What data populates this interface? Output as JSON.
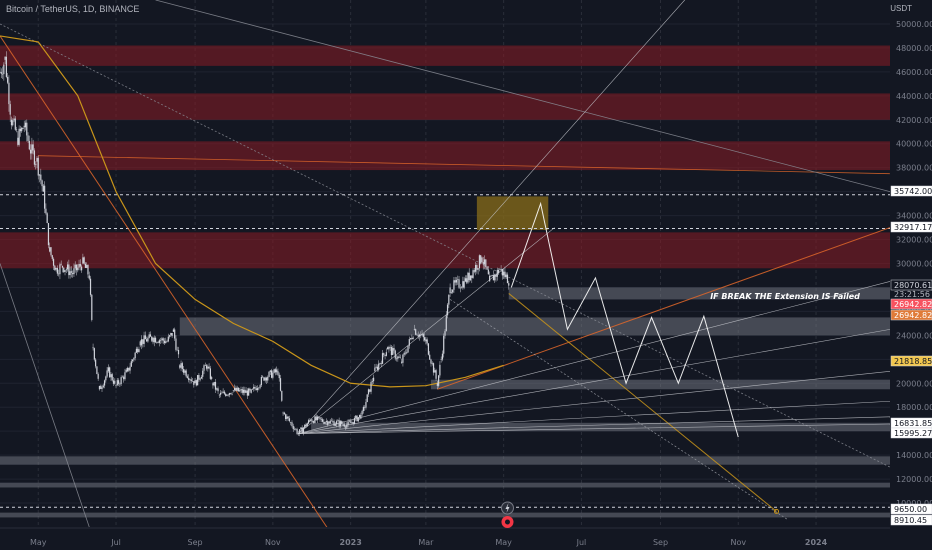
{
  "header": {
    "symbol_title": "Bitcoin / TetherUS, 1D, BINANCE",
    "currency": "USDT"
  },
  "colors": {
    "background": "#131722",
    "candles": "#d1d4dc",
    "resistance_zone": "#8b1c24",
    "support_zone": "#787b86",
    "highlight_zone": "#8a6d1a",
    "moving_average": "#c9951a",
    "orange_line": "#e0672a",
    "projection": "#ffffff"
  },
  "icons": [
    "lightning-icon",
    "tradingview-logo-icon"
  ],
  "chart_data": {
    "type": "line",
    "title": "",
    "xlabel": "",
    "ylabel": "",
    "xlim": [
      "2022-04-01",
      "2024-02-28"
    ],
    "ylim": [
      8000,
      52000
    ],
    "y_ticks": [
      10000,
      12000,
      14000,
      16000,
      18000,
      20000,
      22000,
      24000,
      26000,
      28000,
      30000,
      32000,
      34000,
      36000,
      38000,
      40000,
      42000,
      44000,
      46000,
      48000,
      50000
    ],
    "x_ticks": [
      {
        "label": "May",
        "date": "2022-05-01"
      },
      {
        "label": "Jul",
        "date": "2022-07-01"
      },
      {
        "label": "Sep",
        "date": "2022-09-01"
      },
      {
        "label": "Nov",
        "date": "2022-11-01"
      },
      {
        "label": "2023",
        "date": "2023-01-01"
      },
      {
        "label": "Mar",
        "date": "2023-03-01"
      },
      {
        "label": "May",
        "date": "2023-05-01"
      },
      {
        "label": "Jul",
        "date": "2023-07-01"
      },
      {
        "label": "Sep",
        "date": "2023-09-01"
      },
      {
        "label": "Nov",
        "date": "2023-11-01"
      },
      {
        "label": "2024",
        "date": "2024-01-01"
      }
    ],
    "grid": true,
    "series": [
      {
        "role": "price",
        "points": [
          [
            "2022-04-01",
            46000
          ],
          [
            "2022-04-05",
            47000
          ],
          [
            "2022-04-10",
            42000
          ],
          [
            "2022-04-15",
            40500
          ],
          [
            "2022-04-20",
            41500
          ],
          [
            "2022-04-25",
            39500
          ],
          [
            "2022-04-30",
            38500
          ],
          [
            "2022-05-05",
            36000
          ],
          [
            "2022-05-10",
            31000
          ],
          [
            "2022-05-15",
            29500
          ],
          [
            "2022-05-20",
            29800
          ],
          [
            "2022-05-28",
            29200
          ],
          [
            "2022-06-05",
            30000
          ],
          [
            "2022-06-10",
            29000
          ],
          [
            "2022-06-13",
            23000
          ],
          [
            "2022-06-18",
            19500
          ],
          [
            "2022-06-25",
            21000
          ],
          [
            "2022-07-01",
            19800
          ],
          [
            "2022-07-10",
            21000
          ],
          [
            "2022-07-20",
            23500
          ],
          [
            "2022-07-30",
            23800
          ],
          [
            "2022-08-10",
            23500
          ],
          [
            "2022-08-15",
            24300
          ],
          [
            "2022-08-20",
            21500
          ],
          [
            "2022-09-01",
            20000
          ],
          [
            "2022-09-10",
            21500
          ],
          [
            "2022-09-15",
            20000
          ],
          [
            "2022-09-20",
            19000
          ],
          [
            "2022-10-01",
            19400
          ],
          [
            "2022-10-15",
            19200
          ],
          [
            "2022-10-25",
            20500
          ],
          [
            "2022-11-05",
            21000
          ],
          [
            "2022-11-09",
            17500
          ],
          [
            "2022-11-15",
            16700
          ],
          [
            "2022-11-21",
            15800
          ],
          [
            "2022-12-01",
            17000
          ],
          [
            "2022-12-15",
            16800
          ],
          [
            "2022-12-30",
            16550
          ],
          [
            "2023-01-10",
            17400
          ],
          [
            "2023-01-20",
            21000
          ],
          [
            "2023-01-30",
            23000
          ],
          [
            "2023-02-10",
            21800
          ],
          [
            "2023-02-20",
            24500
          ],
          [
            "2023-03-01",
            23500
          ],
          [
            "2023-03-10",
            20000
          ],
          [
            "2023-03-13",
            22000
          ],
          [
            "2023-03-20",
            28000
          ],
          [
            "2023-04-01",
            28500
          ],
          [
            "2023-04-14",
            30500
          ],
          [
            "2023-04-20",
            28500
          ],
          [
            "2023-04-28",
            29500
          ],
          [
            "2023-05-06",
            28500
          ]
        ]
      },
      {
        "role": "projection",
        "points": [
          [
            "2023-05-07",
            28000
          ],
          [
            "2023-05-30",
            35000
          ],
          [
            "2023-06-20",
            24500
          ],
          [
            "2023-07-12",
            28800
          ],
          [
            "2023-08-05",
            20000
          ],
          [
            "2023-08-25",
            25500
          ],
          [
            "2023-09-15",
            20000
          ],
          [
            "2023-10-05",
            25600
          ],
          [
            "2023-11-01",
            15500
          ]
        ]
      }
    ],
    "price_tags": [
      {
        "value": 35742.0,
        "label": "35742.00"
      },
      {
        "value": 32917.17,
        "label": "32917.17"
      },
      {
        "value": 28070.61,
        "label": "28070.61"
      },
      {
        "value": 26942.82,
        "label": "26942.82"
      },
      {
        "value": 26942.82,
        "label": "26942.82"
      },
      {
        "value": 21818.85,
        "label": "21818.85"
      },
      {
        "value": 16831.85,
        "label": "16831.85"
      },
      {
        "value": 15995.27,
        "label": "15995.27"
      },
      {
        "value": 9650.0,
        "label": "9650.00"
      },
      {
        "value": 8910.45,
        "label": "8910.45"
      }
    ],
    "countdown": "23:21:56",
    "resistance_zones": [
      [
        46500,
        48200
      ],
      [
        42000,
        44200
      ],
      [
        37800,
        40200
      ],
      [
        29600,
        32600
      ]
    ],
    "highlight_zone": {
      "from": "2023-04-10",
      "to": "2023-06-05",
      "low": 32800,
      "high": 35600
    },
    "support_zones": [
      [
        27000,
        28000
      ],
      [
        24000,
        25500
      ],
      [
        19500,
        20300
      ],
      [
        16000,
        16700
      ],
      [
        13200,
        13900
      ],
      [
        11300,
        11700
      ],
      [
        8800,
        9200
      ]
    ],
    "annotations": [
      {
        "text": "IF BREAK THE Extension IS Failed",
        "date": "2023-10-10",
        "value": 27300
      }
    ]
  }
}
